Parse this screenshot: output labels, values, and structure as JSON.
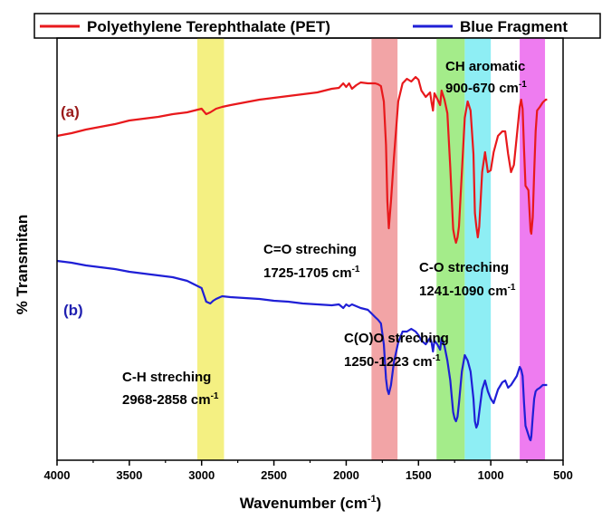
{
  "chart_data": {
    "type": "line",
    "xlabel": "Wavenumber (cm",
    "xlabel_sup": "-1",
    "xlabel_end": ")",
    "ylabel": "% Transmitan",
    "xlim": [
      4000,
      500
    ],
    "x_ticks": [
      4000,
      3500,
      3000,
      2500,
      2000,
      1500,
      1000,
      500
    ],
    "x_tick_labels": [
      "4000",
      "3500",
      "3000",
      "2500",
      "2000",
      "1500",
      "1000",
      "500"
    ],
    "legend_position": "top",
    "colors": {
      "pet": "#e8191c",
      "blue_fragment": "#1f1fd6"
    },
    "series": [
      {
        "name": "Polyethylene Terephthalate (PET)",
        "tag": "(a)",
        "color": "#e8191c",
        "x": [
          4000,
          3900,
          3800,
          3700,
          3600,
          3500,
          3400,
          3300,
          3200,
          3100,
          3050,
          3000,
          2968,
          2940,
          2920,
          2900,
          2858,
          2800,
          2700,
          2600,
          2500,
          2400,
          2300,
          2200,
          2100,
          2050,
          2020,
          2000,
          1980,
          1960,
          1930,
          1900,
          1850,
          1800,
          1780,
          1760,
          1740,
          1725,
          1715,
          1705,
          1690,
          1670,
          1640,
          1610,
          1580,
          1550,
          1520,
          1500,
          1480,
          1450,
          1420,
          1410,
          1400,
          1390,
          1370,
          1350,
          1340,
          1320,
          1300,
          1280,
          1260,
          1250,
          1241,
          1230,
          1220,
          1200,
          1180,
          1160,
          1140,
          1120,
          1110,
          1100,
          1090,
          1080,
          1060,
          1040,
          1020,
          1000,
          980,
          950,
          920,
          900,
          880,
          860,
          840,
          820,
          800,
          790,
          780,
          770,
          760,
          740,
          730,
          725,
          720,
          710,
          700,
          690,
          680,
          660,
          640,
          620,
          610
        ],
        "y": [
          150,
          147,
          143,
          140,
          137,
          133,
          131,
          129,
          126,
          124,
          122,
          120,
          126,
          124,
          122,
          120,
          118,
          116,
          113,
          110,
          108,
          106,
          104,
          102,
          98,
          97,
          92,
          96,
          92,
          98,
          94,
          91,
          92,
          92,
          93,
          95,
          112,
          160,
          222,
          252,
          222,
          175,
          112,
          92,
          87,
          90,
          85,
          88,
          100,
          107,
          102,
          113,
          122,
          103,
          109,
          116,
          100,
          110,
          125,
          185,
          253,
          262,
          268,
          262,
          250,
          190,
          130,
          112,
          122,
          170,
          235,
          250,
          262,
          250,
          190,
          168,
          190,
          188,
          168,
          150,
          145,
          145,
          170,
          190,
          182,
          150,
          118,
          110,
          120,
          165,
          205,
          210,
          240,
          255,
          258,
          240,
          190,
          145,
          122,
          118,
          113,
          110,
          110
        ]
      },
      {
        "name": "Blue Fragment",
        "tag": "(b)",
        "color": "#1f1fd6",
        "x": [
          4000,
          3900,
          3800,
          3700,
          3600,
          3500,
          3400,
          3300,
          3200,
          3100,
          3050,
          3000,
          2968,
          2940,
          2920,
          2900,
          2858,
          2800,
          2700,
          2600,
          2500,
          2400,
          2300,
          2200,
          2100,
          2050,
          2020,
          2000,
          1980,
          1960,
          1930,
          1900,
          1850,
          1800,
          1780,
          1760,
          1740,
          1725,
          1715,
          1705,
          1690,
          1670,
          1640,
          1610,
          1580,
          1550,
          1520,
          1500,
          1480,
          1450,
          1420,
          1410,
          1400,
          1390,
          1370,
          1350,
          1340,
          1320,
          1300,
          1280,
          1260,
          1250,
          1241,
          1230,
          1220,
          1200,
          1180,
          1160,
          1140,
          1120,
          1110,
          1100,
          1090,
          1080,
          1060,
          1040,
          1020,
          1000,
          980,
          950,
          920,
          900,
          880,
          860,
          840,
          820,
          800,
          790,
          780,
          770,
          760,
          740,
          730,
          725,
          720,
          710,
          700,
          690,
          680,
          660,
          640,
          620,
          610
        ],
        "y": [
          288,
          290,
          293,
          295,
          297,
          300,
          302,
          304,
          306,
          310,
          314,
          318,
          333,
          335,
          332,
          330,
          327,
          328,
          329,
          330,
          332,
          333,
          335,
          336,
          337,
          336,
          340,
          336,
          338,
          336,
          338,
          340,
          342,
          350,
          353,
          357,
          380,
          418,
          430,
          435,
          425,
          400,
          378,
          366,
          366,
          363,
          366,
          370,
          376,
          380,
          373,
          378,
          388,
          376,
          380,
          386,
          373,
          382,
          398,
          420,
          455,
          462,
          465,
          460,
          445,
          410,
          392,
          398,
          410,
          440,
          465,
          472,
          468,
          455,
          430,
          420,
          432,
          440,
          445,
          430,
          422,
          420,
          428,
          425,
          420,
          415,
          405,
          408,
          415,
          445,
          470,
          480,
          485,
          486,
          482,
          460,
          440,
          432,
          430,
          428,
          425,
          425,
          425
        ]
      }
    ],
    "bands": [
      {
        "from": 3030,
        "to": 2845,
        "color": "#f4f082"
      },
      {
        "from": 1825,
        "to": 1645,
        "color": "#f2a4a6"
      },
      {
        "from": 1375,
        "to": 1180,
        "color": "#a4ec8a"
      },
      {
        "from": 1180,
        "to": 1000,
        "color": "#8eeef4"
      },
      {
        "from": 800,
        "to": 625,
        "color": "#ee7cf0"
      }
    ],
    "annotations": [
      {
        "text": "CH aromatic"
      },
      {
        "text": "900-670 cm",
        "sup": "-1"
      },
      {
        "text": "C=O streching"
      },
      {
        "text": "1725-1705 cm",
        "sup": "-1"
      },
      {
        "text": "C-O streching"
      },
      {
        "text": "1241-1090 cm",
        "sup": "-1"
      },
      {
        "text": "C(O)O streching"
      },
      {
        "text": "1250-1223 cm",
        "sup": "-1"
      },
      {
        "text": "C-H streching"
      },
      {
        "text": "2968-2858 cm",
        "sup": "-1"
      }
    ]
  }
}
